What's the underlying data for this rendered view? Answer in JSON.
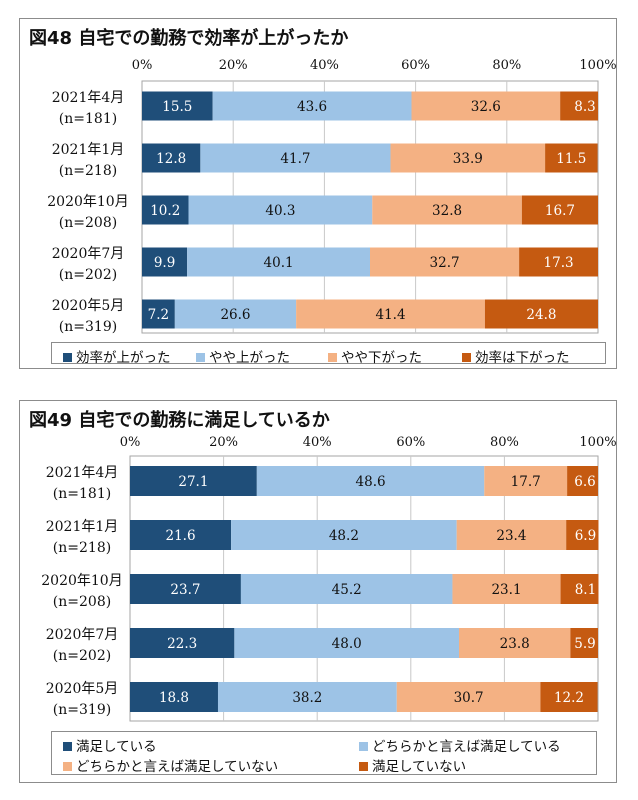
{
  "colors": [
    "#1f4e79",
    "#9dc3e6",
    "#f4b183",
    "#c55a11"
  ],
  "chart_data": [
    {
      "type": "bar",
      "orientation": "horizontal",
      "stacked": "percent",
      "title": "図48 自宅での勤務で効率が上がったか",
      "xlim": [
        0,
        100
      ],
      "xticks": [
        "0%",
        "20%",
        "40%",
        "60%",
        "80%",
        "100%"
      ],
      "categories": [
        [
          "2021年4月",
          "(n=181)"
        ],
        [
          "2021年1月",
          "(n=218)"
        ],
        [
          "2020年10月",
          "(n=208)"
        ],
        [
          "2020年7月",
          "(n=202)"
        ],
        [
          "2020年5月",
          "(n=319)"
        ]
      ],
      "series": [
        {
          "name": "効率が上がった",
          "values": [
            15.5,
            12.8,
            10.2,
            9.9,
            7.2
          ]
        },
        {
          "name": "やや上がった",
          "values": [
            43.6,
            41.7,
            40.3,
            40.1,
            26.6
          ]
        },
        {
          "name": "やや下がった",
          "values": [
            32.6,
            33.9,
            32.8,
            32.7,
            41.4
          ]
        },
        {
          "name": "効率は下がった",
          "values": [
            8.3,
            11.5,
            16.7,
            17.3,
            24.8
          ]
        }
      ],
      "legend": "bottom"
    },
    {
      "type": "bar",
      "orientation": "horizontal",
      "stacked": "percent",
      "title": "図49 自宅での勤務に満足しているか",
      "xlim": [
        0,
        100
      ],
      "xticks": [
        "0%",
        "20%",
        "40%",
        "60%",
        "80%",
        "100%"
      ],
      "categories": [
        [
          "2021年4月",
          "(n=181)"
        ],
        [
          "2021年1月",
          "(n=218)"
        ],
        [
          "2020年10月",
          "(n=208)"
        ],
        [
          "2020年7月",
          "(n=202)"
        ],
        [
          "2020年5月",
          "(n=319)"
        ]
      ],
      "series": [
        {
          "name": "満足している",
          "values": [
            27.1,
            21.6,
            23.7,
            22.3,
            18.8
          ]
        },
        {
          "name": "どちらかと言えば満足している",
          "values": [
            48.6,
            48.2,
            45.2,
            48.0,
            38.2
          ]
        },
        {
          "name": "どちらかと言えば満足していない",
          "values": [
            17.7,
            23.4,
            23.1,
            23.8,
            30.7
          ]
        },
        {
          "name": "満足していない",
          "values": [
            6.6,
            6.9,
            8.1,
            5.9,
            12.2
          ]
        }
      ],
      "legend": "bottom"
    }
  ]
}
